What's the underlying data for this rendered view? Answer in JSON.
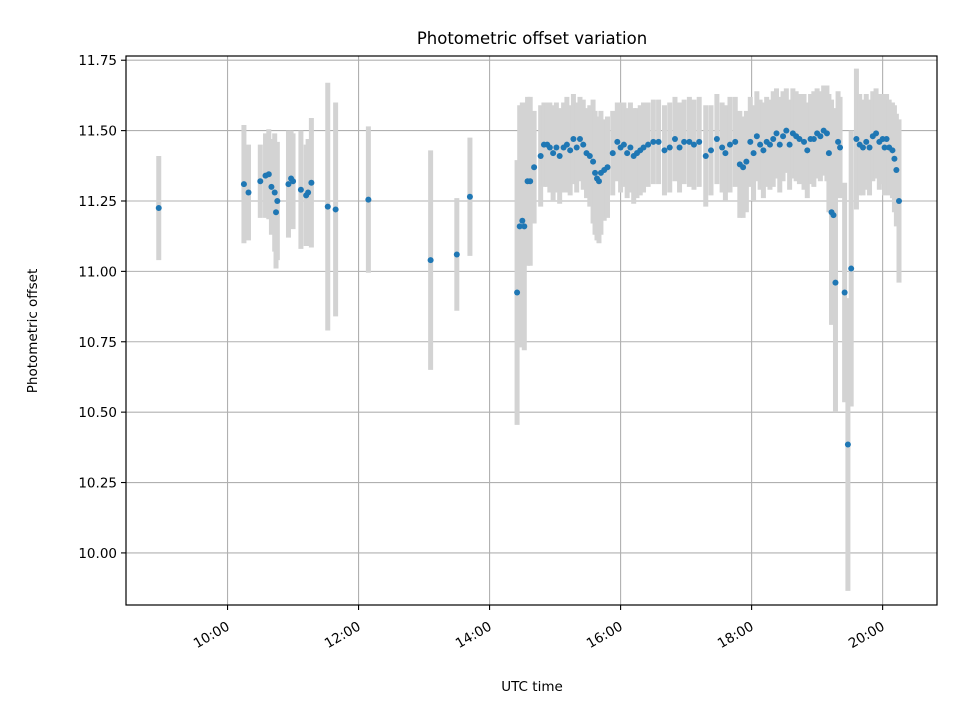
{
  "chart_data": {
    "type": "scatter",
    "title": "Photometric offset variation",
    "xlabel": "UTC time",
    "ylabel": "Photometric offset",
    "x_unit": "hours UTC",
    "xlim": [
      8.45,
      20.83
    ],
    "ylim": [
      9.815,
      11.765
    ],
    "grid": true,
    "colors": {
      "point": "#1f77b4",
      "errorbar": "#d3d3d3",
      "grid": "#b0b0b0",
      "axis": "#000000"
    },
    "x_ticks": [
      {
        "value": 10,
        "label": "10:00"
      },
      {
        "value": 12,
        "label": "12:00"
      },
      {
        "value": 14,
        "label": "14:00"
      },
      {
        "value": 16,
        "label": "16:00"
      },
      {
        "value": 18,
        "label": "18:00"
      },
      {
        "value": 20,
        "label": "20:00"
      }
    ],
    "y_ticks": [
      {
        "value": 10.0,
        "label": "10.00"
      },
      {
        "value": 10.25,
        "label": "10.25"
      },
      {
        "value": 10.5,
        "label": "10.50"
      },
      {
        "value": 10.75,
        "label": "10.75"
      },
      {
        "value": 11.0,
        "label": "11.00"
      },
      {
        "value": 11.25,
        "label": "11.25"
      },
      {
        "value": 11.5,
        "label": "11.50"
      },
      {
        "value": 11.75,
        "label": "11.75"
      }
    ],
    "series": [
      {
        "name": "Photometric offset",
        "points": [
          [
            8.95,
            11.225,
            0.185
          ],
          [
            10.25,
            11.31,
            0.21
          ],
          [
            10.32,
            11.28,
            0.17
          ],
          [
            10.5,
            11.32,
            0.13
          ],
          [
            10.58,
            11.34,
            0.15
          ],
          [
            10.63,
            11.345,
            0.16
          ],
          [
            10.67,
            11.3,
            0.17
          ],
          [
            10.72,
            11.28,
            0.21
          ],
          [
            10.74,
            11.21,
            0.2
          ],
          [
            10.76,
            11.25,
            0.21
          ],
          [
            10.93,
            11.31,
            0.19
          ],
          [
            10.97,
            11.33,
            0.17
          ],
          [
            11.0,
            11.32,
            0.17
          ],
          [
            11.12,
            11.29,
            0.21
          ],
          [
            11.2,
            11.27,
            0.18
          ],
          [
            11.23,
            11.28,
            0.19
          ],
          [
            11.28,
            11.315,
            0.23
          ],
          [
            11.53,
            11.23,
            0.44
          ],
          [
            11.65,
            11.22,
            0.38
          ],
          [
            12.15,
            11.255,
            0.26
          ],
          [
            13.1,
            11.04,
            0.39
          ],
          [
            13.5,
            11.06,
            0.2
          ],
          [
            13.7,
            11.265,
            0.21
          ],
          [
            14.42,
            10.925,
            0.47
          ],
          [
            14.46,
            11.16,
            0.43
          ],
          [
            14.5,
            11.18,
            0.42
          ],
          [
            14.53,
            11.16,
            0.44
          ],
          [
            14.58,
            11.32,
            0.3
          ],
          [
            14.62,
            11.32,
            0.3
          ],
          [
            14.68,
            11.37,
            0.2
          ],
          [
            14.78,
            11.41,
            0.18
          ],
          [
            14.83,
            11.45,
            0.15
          ],
          [
            14.88,
            11.45,
            0.15
          ],
          [
            14.92,
            11.44,
            0.16
          ],
          [
            14.97,
            11.42,
            0.17
          ],
          [
            15.02,
            11.44,
            0.16
          ],
          [
            15.07,
            11.41,
            0.17
          ],
          [
            15.13,
            11.44,
            0.16
          ],
          [
            15.18,
            11.45,
            0.17
          ],
          [
            15.23,
            11.43,
            0.16
          ],
          [
            15.28,
            11.47,
            0.16
          ],
          [
            15.33,
            11.44,
            0.16
          ],
          [
            15.38,
            11.47,
            0.15
          ],
          [
            15.43,
            11.45,
            0.16
          ],
          [
            15.48,
            11.42,
            0.16
          ],
          [
            15.53,
            11.41,
            0.18
          ],
          [
            15.58,
            11.39,
            0.22
          ],
          [
            15.61,
            11.35,
            0.22
          ],
          [
            15.64,
            11.33,
            0.22
          ],
          [
            15.67,
            11.32,
            0.22
          ],
          [
            15.7,
            11.35,
            0.22
          ],
          [
            15.75,
            11.36,
            0.18
          ],
          [
            15.8,
            11.37,
            0.18
          ],
          [
            15.88,
            11.42,
            0.15
          ],
          [
            15.95,
            11.46,
            0.14
          ],
          [
            16.0,
            11.44,
            0.16
          ],
          [
            16.05,
            11.45,
            0.15
          ],
          [
            16.1,
            11.42,
            0.16
          ],
          [
            16.15,
            11.44,
            0.16
          ],
          [
            16.2,
            11.41,
            0.17
          ],
          [
            16.25,
            11.42,
            0.16
          ],
          [
            16.3,
            11.43,
            0.16
          ],
          [
            16.35,
            11.44,
            0.16
          ],
          [
            16.42,
            11.45,
            0.15
          ],
          [
            16.5,
            11.46,
            0.15
          ],
          [
            16.58,
            11.46,
            0.15
          ],
          [
            16.67,
            11.43,
            0.16
          ],
          [
            16.75,
            11.44,
            0.16
          ],
          [
            16.83,
            11.47,
            0.15
          ],
          [
            16.9,
            11.44,
            0.16
          ],
          [
            16.97,
            11.46,
            0.15
          ],
          [
            17.05,
            11.46,
            0.16
          ],
          [
            17.12,
            11.45,
            0.16
          ],
          [
            17.2,
            11.46,
            0.16
          ],
          [
            17.3,
            11.41,
            0.18
          ],
          [
            17.38,
            11.43,
            0.16
          ],
          [
            17.47,
            11.47,
            0.16
          ],
          [
            17.55,
            11.44,
            0.16
          ],
          [
            17.6,
            11.42,
            0.17
          ],
          [
            17.67,
            11.45,
            0.17
          ],
          [
            17.75,
            11.46,
            0.16
          ],
          [
            17.82,
            11.38,
            0.19
          ],
          [
            17.87,
            11.37,
            0.18
          ],
          [
            17.92,
            11.39,
            0.18
          ],
          [
            17.98,
            11.46,
            0.16
          ],
          [
            18.03,
            11.42,
            0.17
          ],
          [
            18.08,
            11.48,
            0.16
          ],
          [
            18.13,
            11.45,
            0.16
          ],
          [
            18.18,
            11.43,
            0.17
          ],
          [
            18.23,
            11.46,
            0.16
          ],
          [
            18.28,
            11.45,
            0.16
          ],
          [
            18.33,
            11.47,
            0.17
          ],
          [
            18.38,
            11.49,
            0.16
          ],
          [
            18.43,
            11.45,
            0.17
          ],
          [
            18.48,
            11.48,
            0.16
          ],
          [
            18.53,
            11.5,
            0.15
          ],
          [
            18.58,
            11.45,
            0.16
          ],
          [
            18.63,
            11.49,
            0.16
          ],
          [
            18.68,
            11.48,
            0.16
          ],
          [
            18.73,
            11.47,
            0.16
          ],
          [
            18.8,
            11.46,
            0.17
          ],
          [
            18.85,
            11.43,
            0.17
          ],
          [
            18.9,
            11.47,
            0.16
          ],
          [
            18.95,
            11.47,
            0.17
          ],
          [
            19.0,
            11.49,
            0.16
          ],
          [
            19.05,
            11.48,
            0.16
          ],
          [
            19.1,
            11.5,
            0.16
          ],
          [
            19.15,
            11.49,
            0.17
          ],
          [
            19.18,
            11.42,
            0.21
          ],
          [
            19.22,
            11.21,
            0.4
          ],
          [
            19.25,
            11.2,
            0.38
          ],
          [
            19.28,
            10.96,
            0.46
          ],
          [
            19.32,
            11.46,
            0.18
          ],
          [
            19.35,
            11.44,
            0.18
          ],
          [
            19.42,
            10.925,
            0.39
          ],
          [
            19.47,
            10.385,
            0.52
          ],
          [
            19.52,
            11.01,
            0.49
          ],
          [
            19.6,
            11.47,
            0.25
          ],
          [
            19.65,
            11.45,
            0.18
          ],
          [
            19.7,
            11.44,
            0.17
          ],
          [
            19.75,
            11.46,
            0.17
          ],
          [
            19.8,
            11.44,
            0.17
          ],
          [
            19.85,
            11.48,
            0.16
          ],
          [
            19.9,
            11.49,
            0.16
          ],
          [
            19.95,
            11.46,
            0.17
          ],
          [
            20.0,
            11.47,
            0.16
          ],
          [
            20.03,
            11.44,
            0.17
          ],
          [
            20.06,
            11.47,
            0.16
          ],
          [
            20.1,
            11.44,
            0.17
          ],
          [
            20.15,
            11.43,
            0.17
          ],
          [
            20.18,
            11.4,
            0.19
          ],
          [
            20.21,
            11.36,
            0.2
          ],
          [
            20.25,
            11.25,
            0.29
          ]
        ]
      }
    ]
  }
}
